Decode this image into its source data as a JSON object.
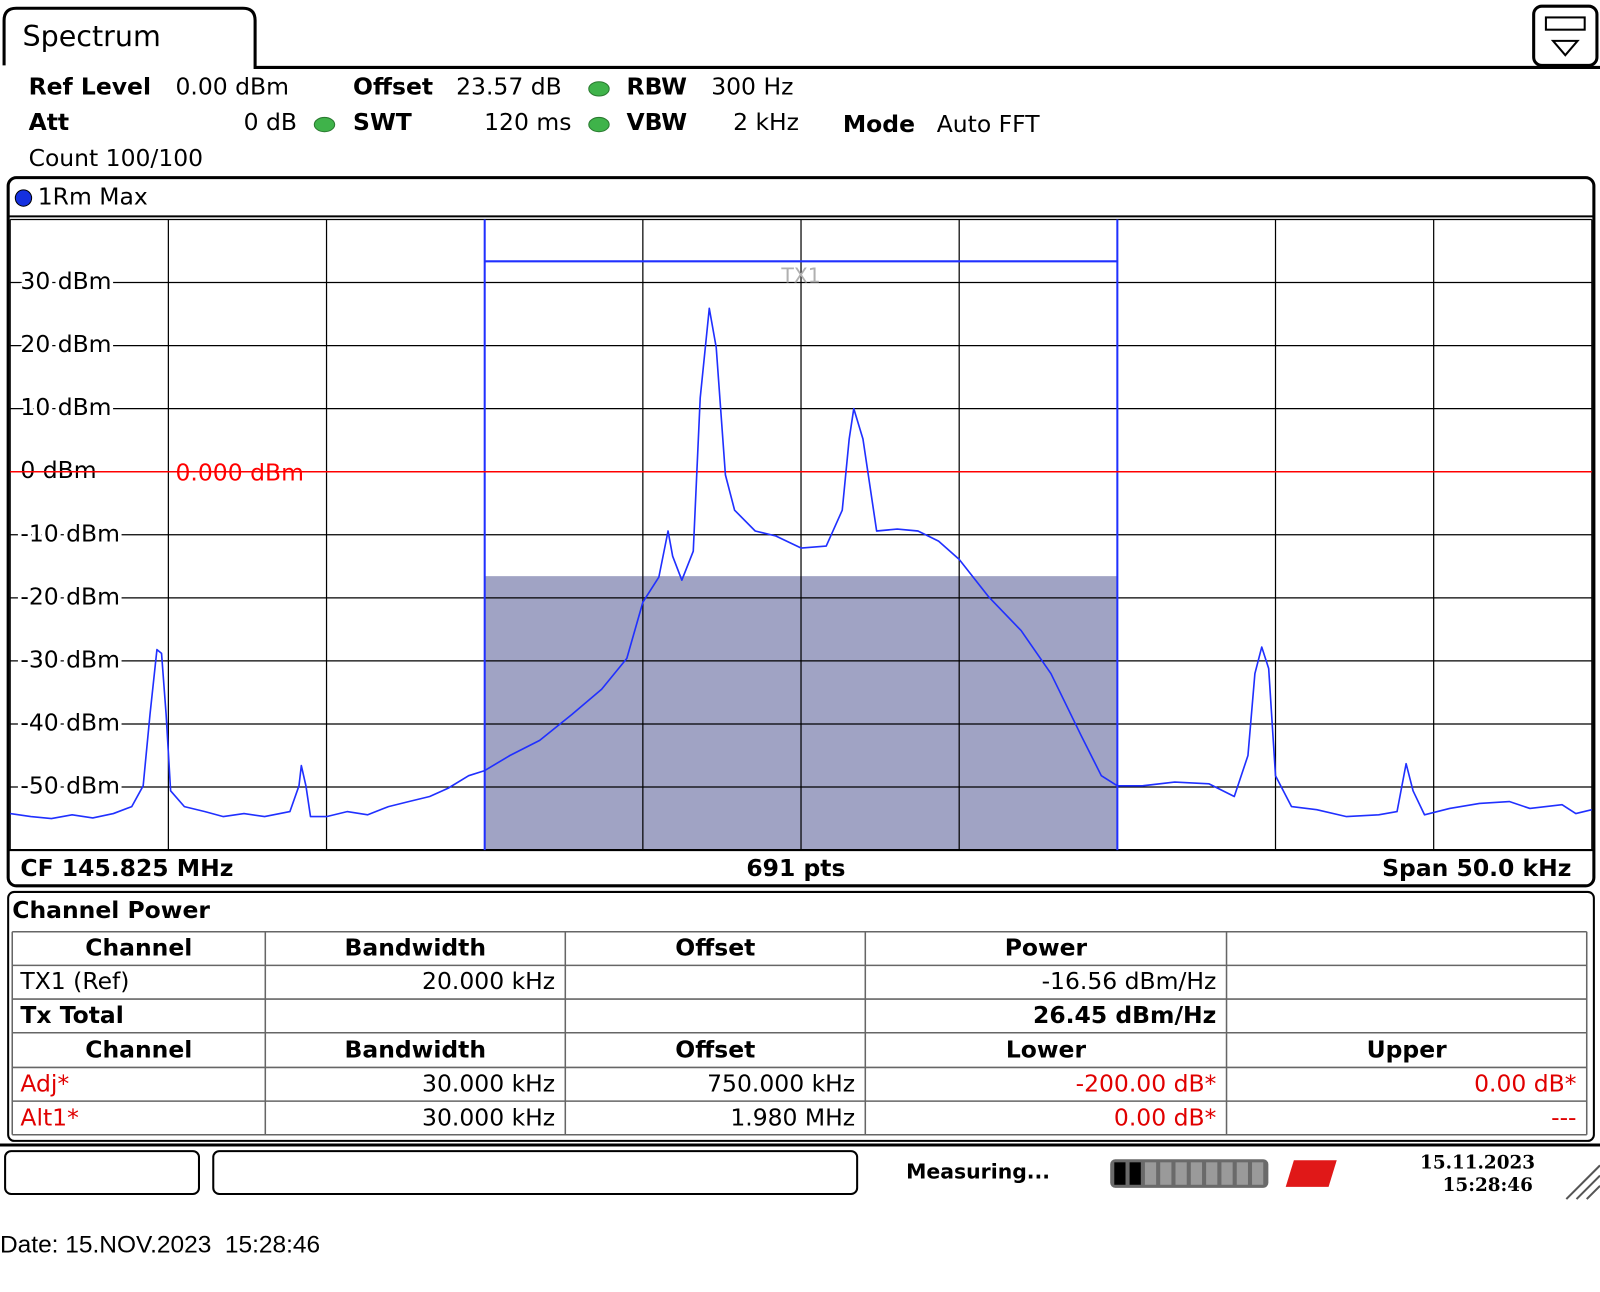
{
  "header": {
    "tab": "Spectrum"
  },
  "settings": {
    "ref_level": {
      "label": "Ref Level",
      "value": "0.00 dBm"
    },
    "offset": {
      "label": "Offset",
      "value": "23.57 dB"
    },
    "rbw": {
      "label": "RBW",
      "value": "300 Hz"
    },
    "att": {
      "label": "Att",
      "value": "0 dB"
    },
    "swt": {
      "label": "SWT",
      "value": "120 ms"
    },
    "vbw": {
      "label": "VBW",
      "value": "2 kHz"
    },
    "mode": {
      "label": "Mode",
      "value": "Auto FFT"
    },
    "count": "Count 100/100"
  },
  "chart_data": {
    "type": "line",
    "trace_label": "1Rm Max",
    "xlim": [
      0,
      690
    ],
    "ylim": [
      -60,
      40
    ],
    "yticks": [
      {
        "value": 30,
        "label": "30 dBm"
      },
      {
        "value": 20,
        "label": "20 dBm"
      },
      {
        "value": 10,
        "label": "10 dBm"
      },
      {
        "value": 0,
        "label": "0 dBm"
      },
      {
        "value": -10,
        "label": "-10 dBm"
      },
      {
        "value": -20,
        "label": "-20 dBm"
      },
      {
        "value": -30,
        "label": "-30 dBm"
      },
      {
        "value": -40,
        "label": "-40 dBm"
      },
      {
        "value": -50,
        "label": "-50 dBm"
      }
    ],
    "grid": true,
    "ref_line": {
      "value": 0,
      "label": "0.000 dBm",
      "color": "#ff0000"
    },
    "channel": {
      "label": "TX1",
      "power": -16.56,
      "color": "#a0a3c4",
      "line_color": "#2030ff"
    },
    "series": [
      {
        "name": "1Rm Max",
        "color": "#2030ff",
        "x": [
          0,
          9,
          18,
          27,
          36,
          45,
          53,
          58,
          61,
          64,
          66,
          68,
          70,
          76,
          85,
          93,
          102,
          111,
          122,
          126,
          127,
          129,
          131,
          138,
          147,
          156,
          165,
          174,
          183,
          191,
          200,
          207,
          218,
          231,
          245,
          258,
          269,
          276,
          283,
          287,
          289,
          293,
          298,
          301,
          305,
          308,
          312,
          316,
          325,
          334,
          345,
          356,
          363,
          366,
          368,
          372,
          378,
          387,
          396,
          405,
          414,
          427,
          441,
          454,
          467,
          476,
          483,
          494,
          508,
          523,
          534,
          540,
          543,
          546,
          549,
          552,
          559,
          570,
          583,
          597,
          605,
          609,
          612,
          617,
          628,
          641,
          654,
          663,
          677,
          683,
          690
        ],
        "values": [
          -54.2,
          -54.7,
          -55,
          -54.4,
          -54.9,
          -54.2,
          -53.1,
          -49.8,
          -38.5,
          -28.2,
          -28.8,
          -38.5,
          -50.6,
          -53.1,
          -53.9,
          -54.7,
          -54.2,
          -54.7,
          -53.9,
          -49.8,
          -46.6,
          -49.8,
          -54.7,
          -54.7,
          -53.9,
          -54.4,
          -53.1,
          -52.3,
          -51.5,
          -50.2,
          -48.2,
          -47.4,
          -45,
          -42.6,
          -38.5,
          -34.5,
          -29.6,
          -20.7,
          -16.7,
          -9.4,
          -13.4,
          -17.2,
          -12.6,
          11.7,
          25.9,
          19.7,
          -0.5,
          -6.1,
          -9.4,
          -10.2,
          -12.1,
          -11.8,
          -6.1,
          5.2,
          10,
          5.2,
          -9.4,
          -9.1,
          -9.4,
          -11,
          -13.9,
          -19.9,
          -25.2,
          -32,
          -41.7,
          -48.2,
          -49.8,
          -49.8,
          -49.2,
          -49.5,
          -51.5,
          -45,
          -32,
          -27.8,
          -31.2,
          -48.2,
          -53.1,
          -53.6,
          -54.7,
          -54.4,
          -53.9,
          -46.3,
          -50.6,
          -54.4,
          -53.4,
          -52.6,
          -52.3,
          -53.4,
          -52.8,
          -54.2,
          -53.6
        ]
      }
    ],
    "footer": {
      "cf": "CF 145.825 MHz",
      "pts": "691 pts",
      "span": "Span 50.0 kHz"
    }
  },
  "table": {
    "title": "Channel Power",
    "header": [
      "Channel",
      "Bandwidth",
      "Offset",
      "Power"
    ],
    "rows": [
      [
        "TX1 (Ref)",
        "20.000 kHz",
        null,
        "-16.56 dBm/Hz"
      ],
      [
        "Tx Total",
        null,
        null,
        "26.45 dBm/Hz"
      ]
    ],
    "header2": [
      "Channel",
      "Bandwidth",
      "Offset",
      "Lower",
      "Upper"
    ],
    "rows2": [
      [
        "Adj*",
        "30.000 kHz",
        "750.000 kHz",
        "-200.00 dB*",
        "0.00 dB*"
      ],
      [
        "Alt1*",
        "30.000 kHz",
        "1.980 MHz",
        "0.00 dB*",
        "---"
      ]
    ]
  },
  "status": {
    "state": "Measuring...",
    "date": "15.11.2023",
    "time": "15:28:46"
  },
  "footer_date": "Date: 15.NOV.2023  15:28:46"
}
